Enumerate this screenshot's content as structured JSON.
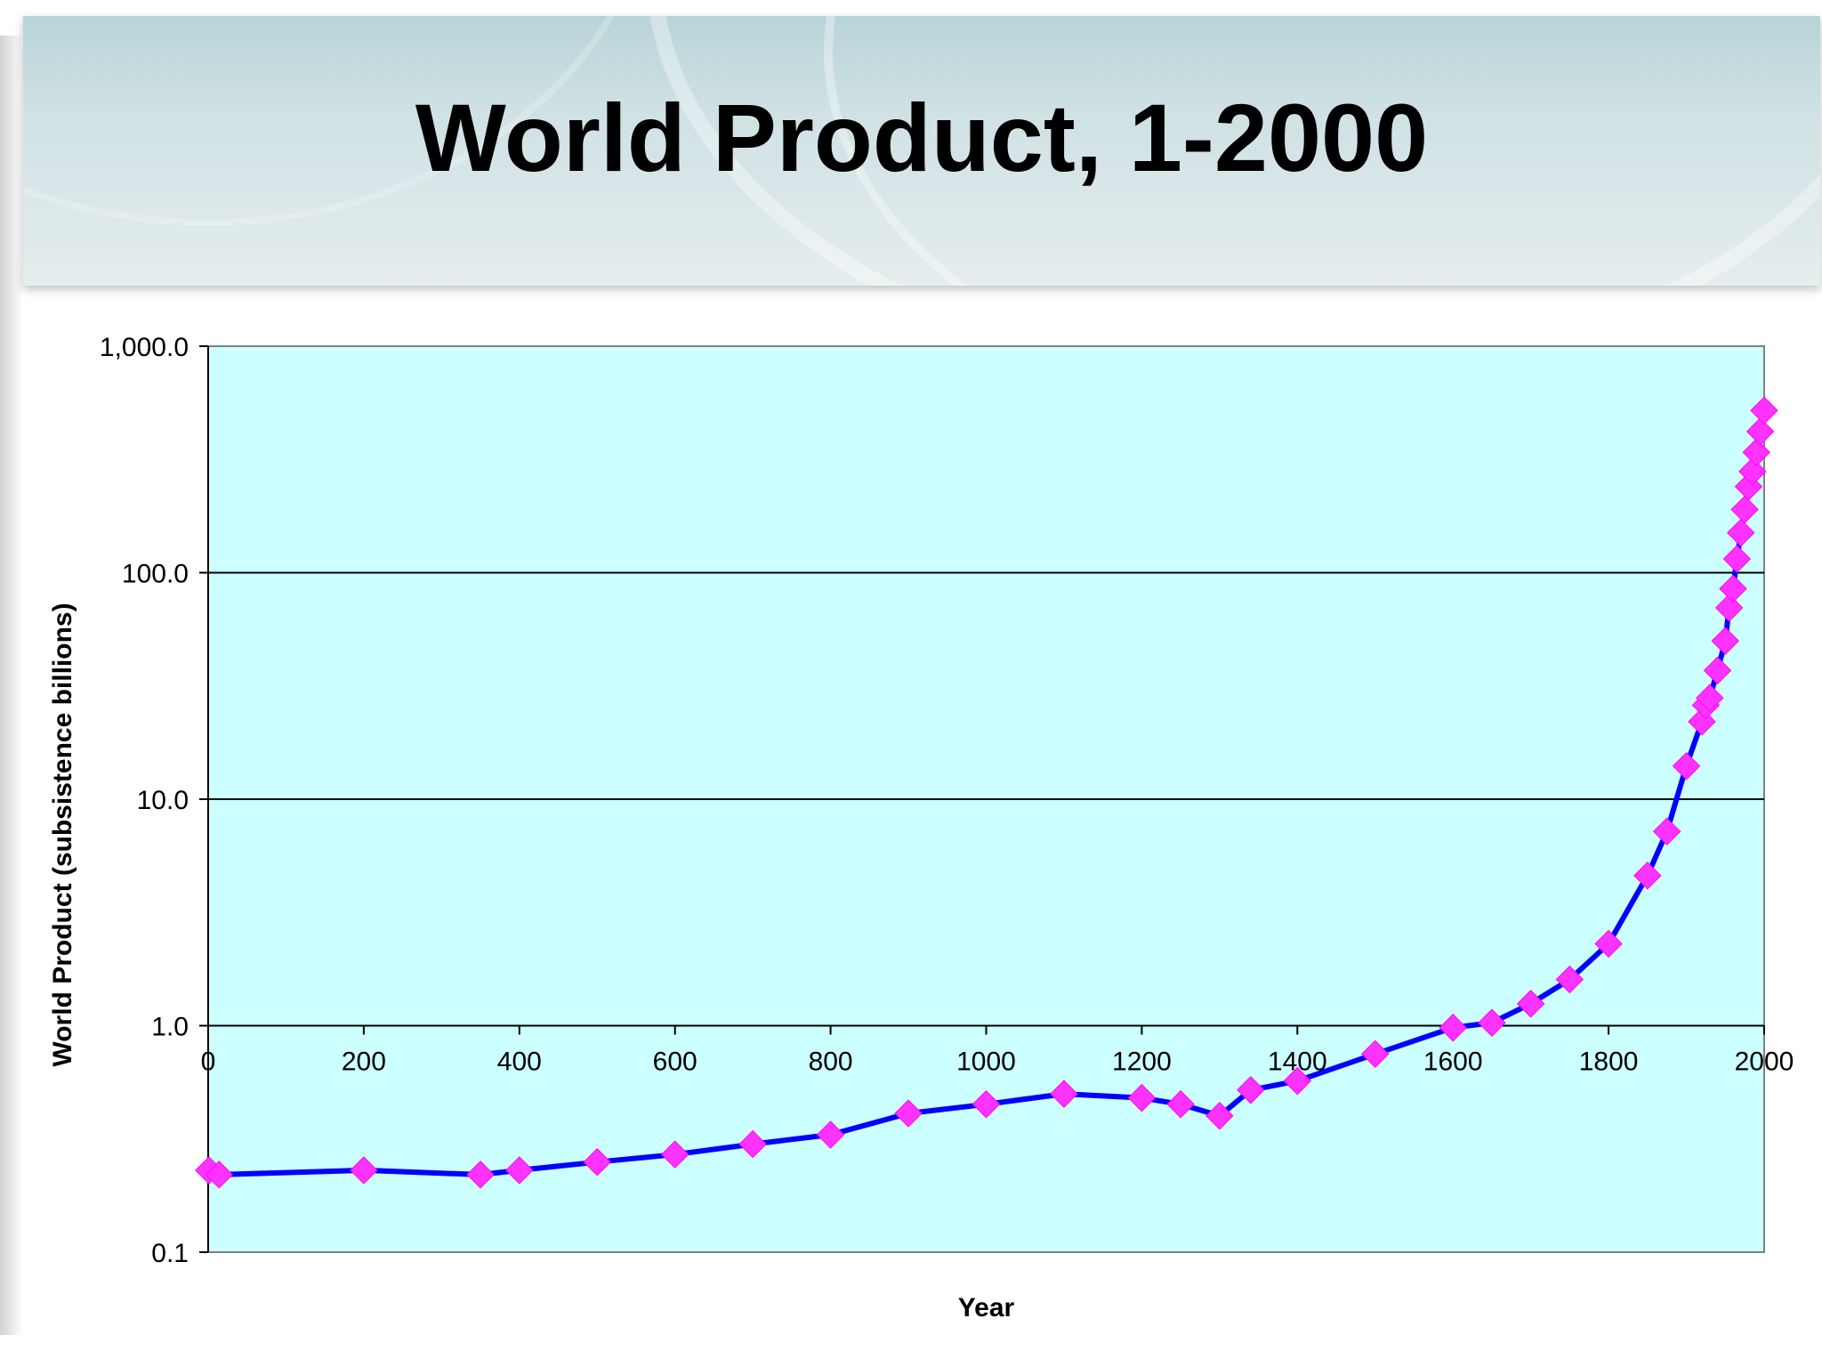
{
  "slide": {
    "title": "World Product, 1-2000"
  },
  "chart_data": {
    "type": "line",
    "title": "",
    "xlabel": "Year",
    "ylabel": "World Product (subsistence billions)",
    "x_scale": "linear",
    "y_scale": "log",
    "xlim": [
      0,
      2000
    ],
    "ylim": [
      0.1,
      1000
    ],
    "x_ticks": [
      0,
      200,
      400,
      600,
      800,
      1000,
      1200,
      1400,
      1600,
      1800,
      2000
    ],
    "x_tick_labels": [
      "0",
      "200",
      "400",
      "600",
      "800",
      "1000",
      "1200",
      "1400",
      "1600",
      "1800",
      "2000"
    ],
    "y_ticks": [
      0.1,
      1,
      10,
      100,
      1000
    ],
    "y_tick_labels": [
      "0.1",
      "1.0",
      "10.0",
      "100.0",
      "1,000.0"
    ],
    "grid": "horizontal major lines",
    "legend": "none",
    "colors": {
      "plot_background": "#ccffff",
      "line": "#0000ff",
      "marker": "#ff33ff"
    },
    "series": [
      {
        "marker": "diamond",
        "x": [
          1,
          14,
          200,
          350,
          400,
          500,
          600,
          700,
          800,
          900,
          1000,
          1100,
          1200,
          1250,
          1300,
          1340,
          1400,
          1500,
          1600,
          1650,
          1700,
          1750,
          1800,
          1850,
          1875,
          1900,
          1920,
          1925,
          1930,
          1940,
          1950,
          1955,
          1960,
          1965,
          1970,
          1975,
          1980,
          1985,
          1990,
          1995,
          2000
        ],
        "y": [
          0.23,
          0.22,
          0.23,
          0.22,
          0.23,
          0.25,
          0.27,
          0.3,
          0.33,
          0.41,
          0.45,
          0.5,
          0.48,
          0.45,
          0.4,
          0.52,
          0.57,
          0.75,
          0.98,
          1.03,
          1.25,
          1.6,
          2.3,
          4.6,
          7.2,
          14,
          22,
          26,
          28,
          37,
          50,
          70,
          85,
          115,
          150,
          190,
          240,
          280,
          340,
          420,
          520
        ]
      }
    ]
  }
}
